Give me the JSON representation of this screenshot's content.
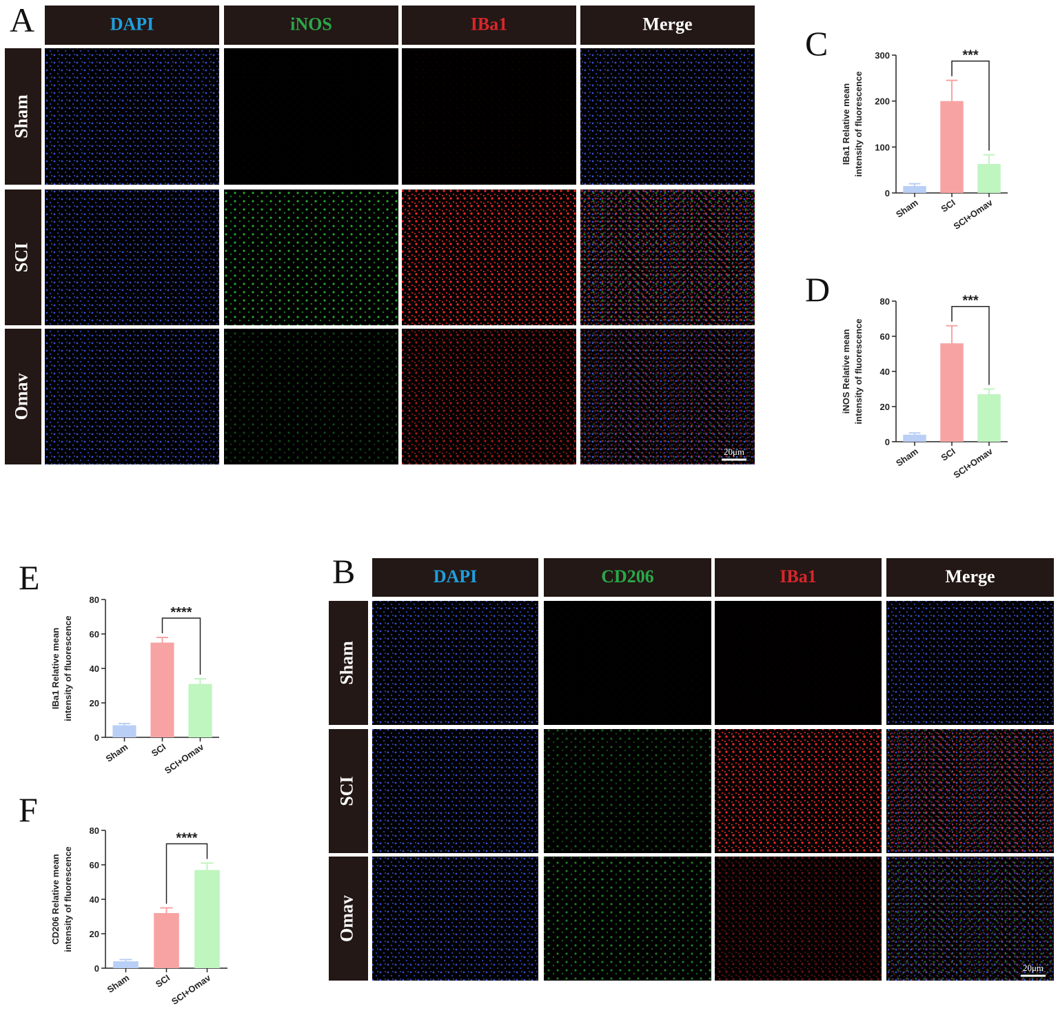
{
  "panels": [
    {
      "letter": "A",
      "columns": [
        "DAPI",
        "iNOS",
        "IBa1",
        "Merge"
      ],
      "rows": [
        "Sham",
        "SCI",
        "Omav"
      ],
      "scale_bar": "20μm"
    },
    {
      "letter": "B",
      "columns": [
        "DAPI",
        "CD206",
        "IBa1",
        "Merge"
      ],
      "rows": [
        "Sham",
        "SCI",
        "Omav"
      ],
      "scale_bar": "20μm"
    }
  ],
  "chart_data": [
    {
      "type": "bar",
      "panel": "C",
      "ylabel": [
        "IBa1 Relative mean",
        "intensity of fluorescence"
      ],
      "categories": [
        "Sham",
        "SCI",
        "SCI+Omav"
      ],
      "values": [
        15,
        200,
        63
      ],
      "errors": [
        5,
        45,
        20
      ],
      "colors": [
        "#b9cff6",
        "#f8a3a3",
        "#bff5bf"
      ],
      "ylim": [
        0,
        300
      ],
      "yticks": [
        0,
        100,
        200,
        300
      ],
      "significance": "***"
    },
    {
      "type": "bar",
      "panel": "D",
      "ylabel": [
        "iNOS Relative mean",
        "intensity of fluorescence"
      ],
      "categories": [
        "Sham",
        "SCI",
        "SCI+Omav"
      ],
      "values": [
        4,
        56,
        27
      ],
      "errors": [
        1,
        10,
        3
      ],
      "colors": [
        "#b9cff6",
        "#f8a3a3",
        "#bff5bf"
      ],
      "ylim": [
        0,
        80
      ],
      "yticks": [
        0,
        20,
        40,
        60,
        80
      ],
      "significance": "***"
    },
    {
      "type": "bar",
      "panel": "E",
      "ylabel": [
        "IBa1 Relative mean",
        "intensity of fluorescence"
      ],
      "categories": [
        "Sham",
        "SCI",
        "SCI+Omav"
      ],
      "values": [
        7,
        55,
        31
      ],
      "errors": [
        1,
        3,
        3
      ],
      "colors": [
        "#b9cff6",
        "#f8a3a3",
        "#bff5bf"
      ],
      "ylim": [
        0,
        80
      ],
      "yticks": [
        0,
        20,
        40,
        60,
        80
      ],
      "significance": "****"
    },
    {
      "type": "bar",
      "panel": "F",
      "ylabel": [
        "CD206 Relative mean",
        "intensity of fluorescence"
      ],
      "categories": [
        "Sham",
        "SCI",
        "SCI+Omav"
      ],
      "values": [
        4,
        32,
        57
      ],
      "errors": [
        1,
        3,
        4
      ],
      "colors": [
        "#b9cff6",
        "#f8a3a3",
        "#bff5bf"
      ],
      "ylim": [
        0,
        80
      ],
      "yticks": [
        0,
        20,
        40,
        60,
        80
      ],
      "significance": "****"
    }
  ]
}
